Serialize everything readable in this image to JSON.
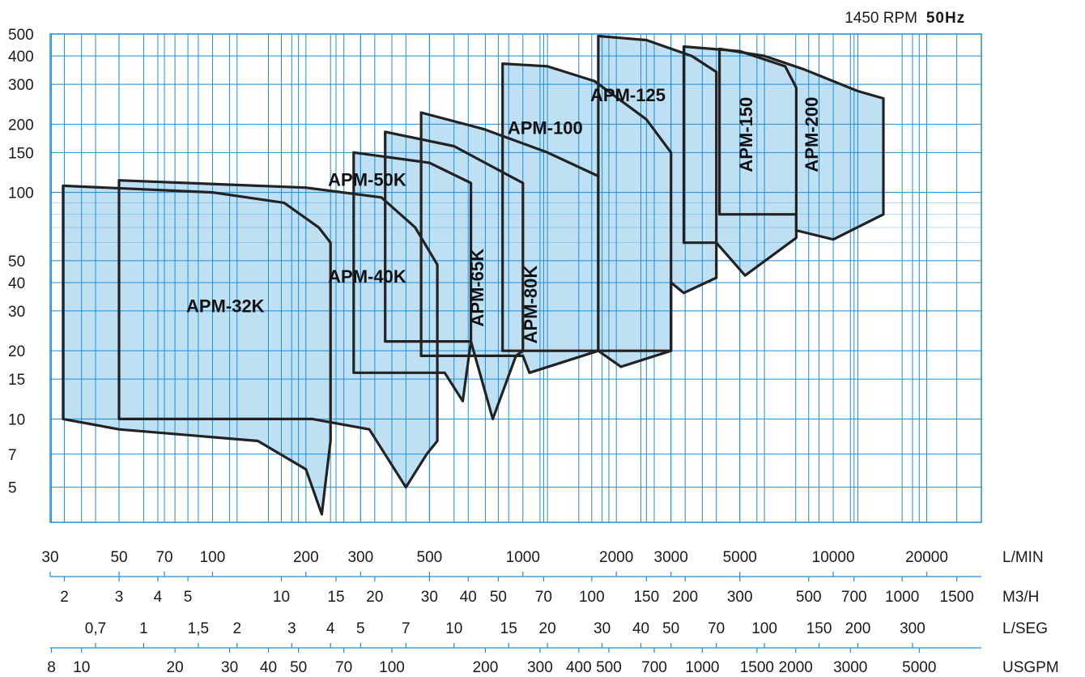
{
  "header": {
    "speed": "1450 RPM",
    "frequency": "50Hz"
  },
  "colors": {
    "fill": "#bfe0f3",
    "grid": "#1c8fd8",
    "outline": "#222222",
    "axis": "#1c8fd8"
  },
  "chart_data": {
    "type": "area",
    "x_scale": "log",
    "y_scale": "log",
    "xlim": [
      30,
      30000
    ],
    "ylim": [
      3.5,
      500
    ],
    "ylabel_ticks": [
      "500",
      "400",
      "300",
      "200",
      "150",
      "100",
      "50",
      "40",
      "30",
      "20",
      "15",
      "10",
      "7",
      "5"
    ],
    "y_tick_values": [
      500,
      400,
      300,
      200,
      150,
      100,
      50,
      40,
      30,
      20,
      15,
      10,
      7,
      5
    ],
    "scales": [
      {
        "unit": "L/MIN",
        "factor": 1,
        "ticks": [
          {
            "label": "30",
            "v": 30
          },
          {
            "label": "50",
            "v": 50
          },
          {
            "label": "70",
            "v": 70
          },
          {
            "label": "100",
            "v": 100
          },
          {
            "label": "200",
            "v": 200
          },
          {
            "label": "300",
            "v": 300
          },
          {
            "label": "500",
            "v": 500
          },
          {
            "label": "1000",
            "v": 1000
          },
          {
            "label": "2000",
            "v": 2000
          },
          {
            "label": "3000",
            "v": 3000
          },
          {
            "label": "5000",
            "v": 5000
          },
          {
            "label": "10000",
            "v": 10000
          },
          {
            "label": "20000",
            "v": 20000
          }
        ]
      },
      {
        "unit": "M3/H",
        "factor": 16.6667,
        "ticks": [
          {
            "label": "2",
            "v": 2
          },
          {
            "label": "3",
            "v": 3
          },
          {
            "label": "4",
            "v": 4
          },
          {
            "label": "5",
            "v": 5
          },
          {
            "label": "10",
            "v": 10
          },
          {
            "label": "15",
            "v": 15
          },
          {
            "label": "20",
            "v": 20
          },
          {
            "label": "30",
            "v": 30
          },
          {
            "label": "40",
            "v": 40
          },
          {
            "label": "50",
            "v": 50
          },
          {
            "label": "70",
            "v": 70
          },
          {
            "label": "100",
            "v": 100
          },
          {
            "label": "150",
            "v": 150
          },
          {
            "label": "200",
            "v": 200
          },
          {
            "label": "300",
            "v": 300
          },
          {
            "label": "500",
            "v": 500
          },
          {
            "label": "700",
            "v": 700
          },
          {
            "label": "1000",
            "v": 1000
          },
          {
            "label": "1500",
            "v": 1500
          }
        ]
      },
      {
        "unit": "L/SEG",
        "factor": 60,
        "ticks": [
          {
            "label": "0,7",
            "v": 0.7
          },
          {
            "label": "1",
            "v": 1
          },
          {
            "label": "1,5",
            "v": 1.5
          },
          {
            "label": "2",
            "v": 2
          },
          {
            "label": "3",
            "v": 3
          },
          {
            "label": "4",
            "v": 4
          },
          {
            "label": "5",
            "v": 5
          },
          {
            "label": "7",
            "v": 7
          },
          {
            "label": "10",
            "v": 10
          },
          {
            "label": "15",
            "v": 15
          },
          {
            "label": "20",
            "v": 20
          },
          {
            "label": "30",
            "v": 30
          },
          {
            "label": "40",
            "v": 40
          },
          {
            "label": "50",
            "v": 50
          },
          {
            "label": "70",
            "v": 70
          },
          {
            "label": "100",
            "v": 100
          },
          {
            "label": "150",
            "v": 150
          },
          {
            "label": "200",
            "v": 200
          },
          {
            "label": "300",
            "v": 300
          }
        ]
      },
      {
        "unit": "USGPM",
        "factor": 3.785,
        "ticks": [
          {
            "label": "8",
            "v": 8
          },
          {
            "label": "10",
            "v": 10
          },
          {
            "label": "20",
            "v": 20
          },
          {
            "label": "30",
            "v": 30
          },
          {
            "label": "40",
            "v": 40
          },
          {
            "label": "50",
            "v": 50
          },
          {
            "label": "70",
            "v": 70
          },
          {
            "label": "100",
            "v": 100
          },
          {
            "label": "200",
            "v": 200
          },
          {
            "label": "300",
            "v": 300
          },
          {
            "label": "400",
            "v": 400
          },
          {
            "label": "500",
            "v": 500
          },
          {
            "label": "700",
            "v": 700
          },
          {
            "label": "1000",
            "v": 1000
          },
          {
            "label": "1500",
            "v": 1500
          },
          {
            "label": "2000",
            "v": 2000
          },
          {
            "label": "3000",
            "v": 3000
          },
          {
            "label": "5000",
            "v": 5000
          }
        ]
      }
    ],
    "series": [
      {
        "name": "APM-200",
        "label_rotated": true,
        "label_at": [
          8600,
          180
        ],
        "points": [
          [
            4300,
            430
          ],
          [
            6000,
            400
          ],
          [
            8000,
            350
          ],
          [
            12000,
            280
          ],
          [
            14500,
            260
          ],
          [
            14500,
            80
          ],
          [
            10000,
            62
          ],
          [
            7600,
            68
          ],
          [
            7600,
            80
          ],
          [
            4300,
            80
          ]
        ]
      },
      {
        "name": "APM-150",
        "label_rotated": true,
        "label_at": [
          5300,
          180
        ],
        "points": [
          [
            3300,
            440
          ],
          [
            5000,
            420
          ],
          [
            7000,
            360
          ],
          [
            7600,
            290
          ],
          [
            7600,
            63
          ],
          [
            5200,
            43
          ],
          [
            4200,
            60
          ],
          [
            3300,
            60
          ]
        ]
      },
      {
        "name": "APM-125",
        "label_rotated": false,
        "label_at": [
          2180,
          265
        ],
        "points": [
          [
            1750,
            490
          ],
          [
            2500,
            470
          ],
          [
            3500,
            400
          ],
          [
            4200,
            340
          ],
          [
            4200,
            42
          ],
          [
            3300,
            36
          ],
          [
            3000,
            40
          ],
          [
            3000,
            20
          ],
          [
            1750,
            20
          ]
        ]
      },
      {
        "name": "APM-100",
        "label_rotated": false,
        "label_at": [
          1180,
          190
        ],
        "points": [
          [
            860,
            370
          ],
          [
            1200,
            360
          ],
          [
            1700,
            310
          ],
          [
            2500,
            210
          ],
          [
            3000,
            150
          ],
          [
            3000,
            20
          ],
          [
            2070,
            17
          ],
          [
            1750,
            20
          ],
          [
            860,
            20
          ]
        ]
      },
      {
        "name": "APM-80K",
        "label_rotated": true,
        "label_at": [
          1070,
          32
        ],
        "points": [
          [
            470,
            225
          ],
          [
            750,
            190
          ],
          [
            1200,
            150
          ],
          [
            1750,
            118
          ],
          [
            1750,
            20
          ],
          [
            1050,
            16
          ],
          [
            1000,
            19
          ],
          [
            470,
            19
          ]
        ]
      },
      {
        "name": "APM-65K",
        "label_rotated": true,
        "label_at": [
          720,
          38
        ],
        "points": [
          [
            360,
            185
          ],
          [
            600,
            160
          ],
          [
            1000,
            110
          ],
          [
            1000,
            20
          ],
          [
            950,
            19
          ],
          [
            800,
            10
          ],
          [
            680,
            22
          ],
          [
            360,
            22
          ]
        ]
      },
      {
        "name": "APM-50K",
        "label_rotated": false,
        "label_at": [
          315,
          112
        ],
        "points": [
          [
            285,
            150
          ],
          [
            500,
            135
          ],
          [
            680,
            110
          ],
          [
            680,
            22
          ],
          [
            640,
            12
          ],
          [
            560,
            16
          ],
          [
            285,
            16
          ]
        ]
      },
      {
        "name": "APM-40K",
        "label_rotated": false,
        "label_at": [
          315,
          42
        ],
        "points": [
          [
            50,
            113
          ],
          [
            200,
            105
          ],
          [
            350,
            95
          ],
          [
            450,
            70
          ],
          [
            530,
            48
          ],
          [
            530,
            8
          ],
          [
            490,
            7
          ],
          [
            420,
            5
          ],
          [
            320,
            9
          ],
          [
            210,
            10
          ],
          [
            150,
            10
          ],
          [
            50,
            10
          ]
        ]
      },
      {
        "name": "APM-32K",
        "label_rotated": false,
        "label_at": [
          110,
          31
        ],
        "points": [
          [
            33,
            107
          ],
          [
            100,
            100
          ],
          [
            170,
            90
          ],
          [
            220,
            70
          ],
          [
            240,
            60
          ],
          [
            240,
            8
          ],
          [
            225,
            3.8
          ],
          [
            200,
            6
          ],
          [
            140,
            8
          ],
          [
            50,
            9
          ],
          [
            33,
            10
          ]
        ]
      }
    ]
  }
}
